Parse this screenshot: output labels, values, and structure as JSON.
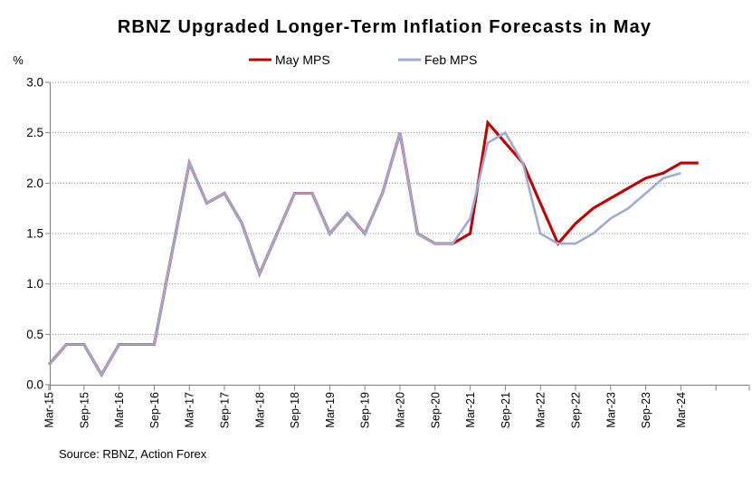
{
  "title": "RBNZ Upgraded Longer-Term Inflation Forecasts in May",
  "y_axis": {
    "unit_label": "%",
    "tick_labels": [
      "3.0",
      "2.5",
      "2.0",
      "1.5",
      "1.0",
      "0.5",
      "0.0"
    ]
  },
  "legend": {
    "items": [
      {
        "label": "May MPS",
        "color": "#C00000"
      },
      {
        "label": "Feb MPS",
        "color": "#9EAAD2"
      }
    ]
  },
  "source_note": "Source: RBNZ, Action Forex",
  "chart_data": {
    "type": "line",
    "title": "RBNZ Upgraded Longer-Term Inflation Forecasts in May",
    "ylabel": "%",
    "ylim": [
      0.0,
      3.0
    ],
    "y_tick_step": 0.5,
    "grid": true,
    "legend_position": "top",
    "x_tick_labels": [
      "Mar-15",
      "Sep-15",
      "Mar-16",
      "Sep-16",
      "Mar-17",
      "Sep-17",
      "Mar-18",
      "Sep-18",
      "Mar-19",
      "Sep-19",
      "Mar-20",
      "Sep-20",
      "Mar-21",
      "Sep-21",
      "Mar-22",
      "Sep-22",
      "Mar-23",
      "Sep-23",
      "Mar-24"
    ],
    "categories": [
      "Mar-15",
      "Jun-15",
      "Sep-15",
      "Dec-15",
      "Mar-16",
      "Jun-16",
      "Sep-16",
      "Dec-16",
      "Mar-17",
      "Jun-17",
      "Sep-17",
      "Dec-17",
      "Mar-18",
      "Jun-18",
      "Sep-18",
      "Dec-18",
      "Mar-19",
      "Jun-19",
      "Sep-19",
      "Dec-19",
      "Mar-20",
      "Jun-20",
      "Sep-20",
      "Dec-20",
      "Mar-21",
      "Jun-21",
      "Sep-21",
      "Dec-21",
      "Mar-22",
      "Jun-22",
      "Sep-22",
      "Dec-22",
      "Mar-23",
      "Jun-23",
      "Sep-23",
      "Dec-23",
      "Mar-24",
      "Jun-24"
    ],
    "series": [
      {
        "name": "May MPS",
        "color": "#C00000",
        "values": [
          0.2,
          0.4,
          0.4,
          0.1,
          0.4,
          0.4,
          0.4,
          1.3,
          2.2,
          1.8,
          1.9,
          1.6,
          1.1,
          1.5,
          1.9,
          1.9,
          1.5,
          1.7,
          1.5,
          1.9,
          2.5,
          1.5,
          1.4,
          1.4,
          1.5,
          2.6,
          2.4,
          2.2,
          1.8,
          1.4,
          1.6,
          1.75,
          1.85,
          1.95,
          2.05,
          2.1,
          2.2,
          2.2
        ]
      },
      {
        "name": "Feb MPS",
        "color": "#9EAAD2",
        "values": [
          0.2,
          0.4,
          0.4,
          0.1,
          0.4,
          0.4,
          0.4,
          1.3,
          2.2,
          1.8,
          1.9,
          1.6,
          1.1,
          1.5,
          1.9,
          1.9,
          1.5,
          1.7,
          1.5,
          1.9,
          2.5,
          1.5,
          1.4,
          1.4,
          1.65,
          2.4,
          2.5,
          2.2,
          1.5,
          1.4,
          1.4,
          1.5,
          1.65,
          1.75,
          1.9,
          2.05,
          2.1
        ]
      }
    ]
  }
}
